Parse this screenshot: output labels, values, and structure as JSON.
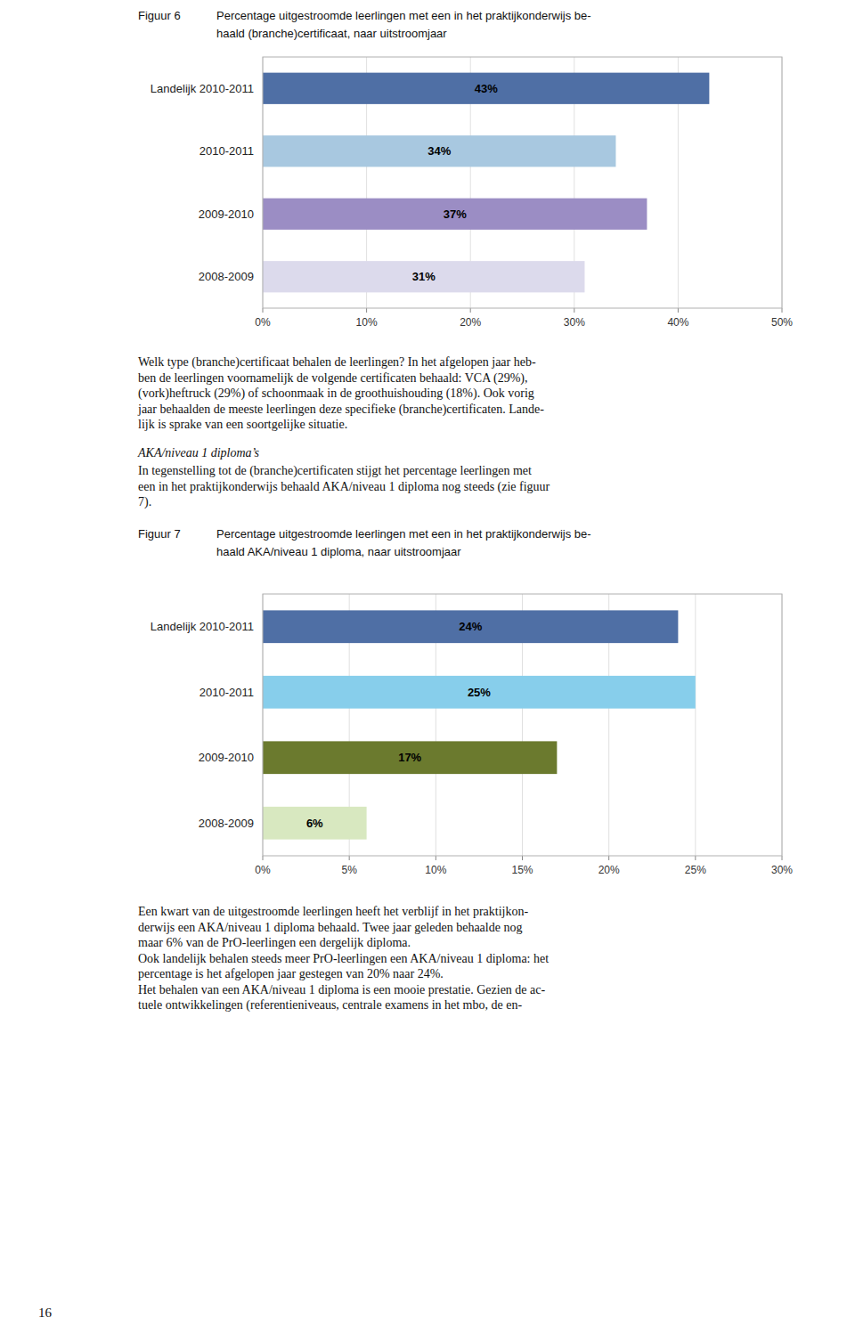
{
  "chart_data": [
    {
      "type": "bar",
      "orientation": "horizontal",
      "title": "Figuur 6",
      "subtitle": "Percentage uitgestroomde leerlingen met een in het praktijkonderwijs be-\nhaald (branche)certificaat, naar uitstroomjaar",
      "categories": [
        "Landelijk 2010-2011",
        "2010-2011",
        "2009-2010",
        "2008-2009"
      ],
      "values": [
        43,
        34,
        37,
        31
      ],
      "value_labels": [
        "43%",
        "34%",
        "37%",
        "31%"
      ],
      "colors": [
        "#4f6fa5",
        "#a8c8e0",
        "#9b8dc4",
        "#dcdaec"
      ],
      "xlim": [
        0,
        50
      ],
      "xticks": [
        {
          "value": 0,
          "label": "0%"
        },
        {
          "value": 10,
          "label": "10%"
        },
        {
          "value": 20,
          "label": "20%"
        },
        {
          "value": 30,
          "label": "30%"
        },
        {
          "value": 40,
          "label": "40%"
        },
        {
          "value": 50,
          "label": "50%"
        }
      ],
      "grid": true,
      "data_labels": true
    },
    {
      "type": "bar",
      "orientation": "horizontal",
      "title": "Figuur 7",
      "subtitle": "Percentage uitgestroomde leerlingen met een in het praktijkonderwijs be-\nhaald AKA/niveau 1 diploma, naar uitstroomjaar",
      "categories": [
        "Landelijk 2010-2011",
        "2010-2011",
        "2009-2010",
        "2008-2009"
      ],
      "values": [
        24,
        25,
        17,
        6
      ],
      "value_labels": [
        "24%",
        "25%",
        "17%",
        "6%"
      ],
      "colors": [
        "#4f6fa5",
        "#87CEEB",
        "#6b7a2e",
        "#d8e8c0"
      ],
      "xlim": [
        0,
        30
      ],
      "xticks": [
        {
          "value": 0,
          "label": "0%"
        },
        {
          "value": 5,
          "label": "5%"
        },
        {
          "value": 10,
          "label": "10%"
        },
        {
          "value": 15,
          "label": "15%"
        },
        {
          "value": 20,
          "label": "20%"
        },
        {
          "value": 25,
          "label": "25%"
        },
        {
          "value": 30,
          "label": "30%"
        }
      ],
      "grid": true,
      "data_labels": true
    }
  ],
  "page_text": {
    "paragraph_1": [
      "Welk type (branche)certificaat behalen de leerlingen? In het afgelopen jaar heb-",
      "ben de leerlingen voornamelijk de volgende certificaten behaald: VCA (29%),",
      "(vork)heftruck (29%) of schoonmaak in de groothuishouding (18%). Ook vorig",
      "jaar behaalden de meeste leerlingen deze specifieke (branche)certificaten. Lande-",
      "lijk is sprake van een soortgelijke situatie."
    ],
    "heading": "AKA/niveau 1 diploma’s",
    "paragraph_2": [
      "In tegenstelling tot de (branche)certificaten stijgt het percentage leerlingen met",
      "een in het praktijkonderwijs behaald AKA/niveau 1 diploma nog steeds (zie figuur",
      "7)."
    ],
    "paragraph_3": [
      "Een kwart van de uitgestroomde leerlingen heeft het verblijf in het praktijkon-",
      "derwijs een AKA/niveau 1 diploma behaald. Twee jaar geleden behaalde nog",
      "maar 6% van de PrO-leerlingen een dergelijk diploma.",
      "Ook landelijk behalen steeds meer PrO-leerlingen een AKA/niveau 1 diploma: het",
      "percentage is het afgelopen jaar gestegen van 20% naar 24%.",
      "Het behalen van een AKA/niveau 1 diploma is een mooie prestatie. Gezien de ac-",
      "tuele ontwikkelingen (referentieniveaus, centrale examens in het mbo, de en-"
    ],
    "page_number": "16"
  }
}
